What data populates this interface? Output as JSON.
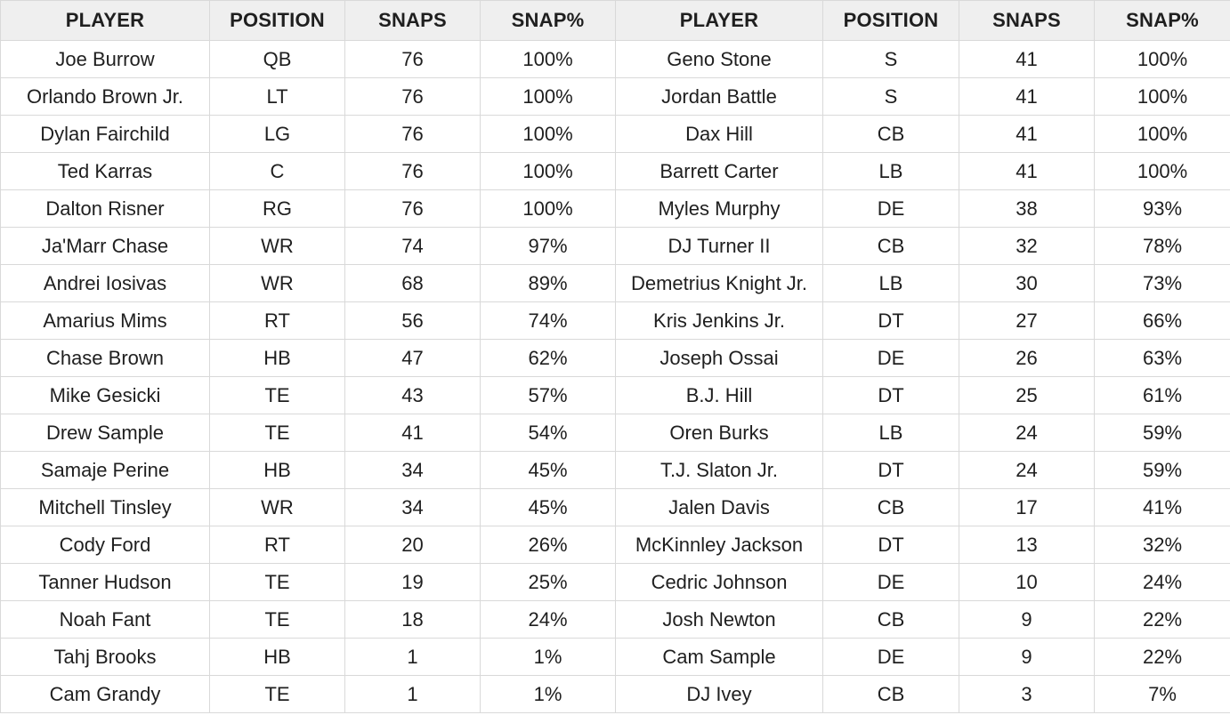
{
  "headers": [
    "PLAYER",
    "POSITION",
    "SNAPS",
    "SNAP%",
    "PLAYER",
    "POSITION",
    "SNAPS",
    "SNAP%"
  ],
  "rows": [
    [
      "Joe Burrow",
      "QB",
      "76",
      "100%",
      "Geno Stone",
      "S",
      "41",
      "100%"
    ],
    [
      "Orlando Brown Jr.",
      "LT",
      "76",
      "100%",
      "Jordan Battle",
      "S",
      "41",
      "100%"
    ],
    [
      "Dylan Fairchild",
      "LG",
      "76",
      "100%",
      "Dax Hill",
      "CB",
      "41",
      "100%"
    ],
    [
      "Ted Karras",
      "C",
      "76",
      "100%",
      "Barrett Carter",
      "LB",
      "41",
      "100%"
    ],
    [
      "Dalton Risner",
      "RG",
      "76",
      "100%",
      "Myles Murphy",
      "DE",
      "38",
      "93%"
    ],
    [
      "Ja'Marr Chase",
      "WR",
      "74",
      "97%",
      "DJ Turner II",
      "CB",
      "32",
      "78%"
    ],
    [
      "Andrei Iosivas",
      "WR",
      "68",
      "89%",
      "Demetrius Knight Jr.",
      "LB",
      "30",
      "73%"
    ],
    [
      "Amarius Mims",
      "RT",
      "56",
      "74%",
      "Kris Jenkins Jr.",
      "DT",
      "27",
      "66%"
    ],
    [
      "Chase Brown",
      "HB",
      "47",
      "62%",
      "Joseph Ossai",
      "DE",
      "26",
      "63%"
    ],
    [
      "Mike Gesicki",
      "TE",
      "43",
      "57%",
      "B.J. Hill",
      "DT",
      "25",
      "61%"
    ],
    [
      "Drew Sample",
      "TE",
      "41",
      "54%",
      "Oren Burks",
      "LB",
      "24",
      "59%"
    ],
    [
      "Samaje Perine",
      "HB",
      "34",
      "45%",
      "T.J. Slaton Jr.",
      "DT",
      "24",
      "59%"
    ],
    [
      "Mitchell Tinsley",
      "WR",
      "34",
      "45%",
      "Jalen Davis",
      "CB",
      "17",
      "41%"
    ],
    [
      "Cody Ford",
      "RT",
      "20",
      "26%",
      "McKinnley Jackson",
      "DT",
      "13",
      "32%"
    ],
    [
      "Tanner Hudson",
      "TE",
      "19",
      "25%",
      "Cedric Johnson",
      "DE",
      "10",
      "24%"
    ],
    [
      "Noah Fant",
      "TE",
      "18",
      "24%",
      "Josh Newton",
      "CB",
      "9",
      "22%"
    ],
    [
      "Tahj Brooks",
      "HB",
      "1",
      "1%",
      "Cam Sample",
      "DE",
      "9",
      "22%"
    ],
    [
      "Cam Grandy",
      "TE",
      "1",
      "1%",
      "DJ Ivey",
      "CB",
      "3",
      "7%"
    ]
  ]
}
